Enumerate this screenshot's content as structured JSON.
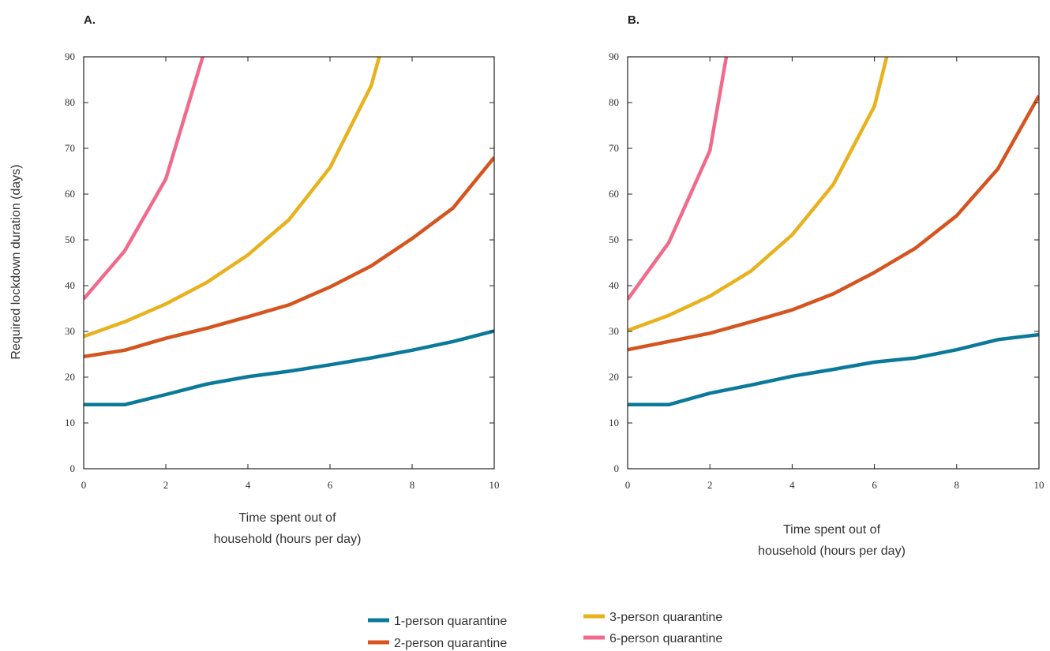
{
  "ylabel": "Required lockdown duration (days)",
  "xlabel_lines": [
    "Time spent out of",
    "household (hours per day)"
  ],
  "colors": {
    "1-person quarantine": "#0b7a9a",
    "2-person quarantine": "#d55420",
    "3-person quarantine": "#e8b11e",
    "6-person quarantine": "#f06b8b"
  },
  "chart_data": [
    {
      "type": "line",
      "panel": "A.",
      "x_ticks": [
        0,
        2,
        4,
        6,
        8,
        10
      ],
      "y_ticks": [
        0,
        10,
        20,
        30,
        40,
        50,
        60,
        70,
        80,
        90
      ],
      "xlim": [
        0,
        10
      ],
      "ylim": [
        0,
        90
      ],
      "grid": false,
      "series": [
        {
          "name": "1-person quarantine",
          "x": [
            0,
            1,
            2,
            3,
            4,
            5,
            6,
            7,
            8,
            9,
            10
          ],
          "y": [
            14,
            14,
            16.2,
            18.5,
            20.1,
            21.3,
            22.7,
            24.2,
            25.9,
            27.8,
            30.1
          ]
        },
        {
          "name": "2-person quarantine",
          "x": [
            0,
            1,
            2,
            3,
            4,
            5,
            6,
            7,
            8,
            9,
            10
          ],
          "y": [
            24.5,
            25.9,
            28.5,
            30.7,
            33.2,
            35.8,
            39.7,
            44.3,
            50.3,
            57,
            68
          ]
        },
        {
          "name": "3-person quarantine",
          "x": [
            0,
            1,
            2,
            3,
            4,
            5,
            6,
            7,
            7.2
          ],
          "y": [
            28.9,
            32.1,
            36,
            40.7,
            46.7,
            54.4,
            65.8,
            83.6,
            90
          ]
        },
        {
          "name": "6-person quarantine",
          "x": [
            0,
            1,
            2,
            2.9
          ],
          "y": [
            37.1,
            47.6,
            63.3,
            90
          ]
        }
      ]
    },
    {
      "type": "line",
      "panel": "B.",
      "x_ticks": [
        0,
        2,
        4,
        6,
        8,
        10
      ],
      "y_ticks": [
        0,
        10,
        20,
        30,
        40,
        50,
        60,
        70,
        80,
        90
      ],
      "xlim": [
        0,
        10
      ],
      "ylim": [
        0,
        90
      ],
      "grid": false,
      "series": [
        {
          "name": "1-person quarantine",
          "x": [
            0,
            1,
            2,
            3,
            4,
            5,
            6,
            7,
            8,
            9,
            10
          ],
          "y": [
            14,
            14,
            16.5,
            18.3,
            20.2,
            21.7,
            23.3,
            24.2,
            26,
            28.2,
            29.3
          ]
        },
        {
          "name": "2-person quarantine",
          "x": [
            0,
            1,
            2,
            3,
            4,
            5,
            6,
            7,
            8,
            9,
            10
          ],
          "y": [
            26,
            27.8,
            29.6,
            32.1,
            34.7,
            38.2,
            42.9,
            48.2,
            55.3,
            65.5,
            81.5
          ]
        },
        {
          "name": "3-person quarantine",
          "x": [
            0,
            1,
            2,
            3,
            4,
            5,
            6,
            6.3
          ],
          "y": [
            30.2,
            33.5,
            37.7,
            43.2,
            51.1,
            62.1,
            79.2,
            90
          ]
        },
        {
          "name": "6-person quarantine",
          "x": [
            0,
            1,
            2,
            2.4
          ],
          "y": [
            37,
            49.4,
            69.5,
            90
          ]
        }
      ]
    }
  ],
  "legend": [
    {
      "label": "1-person quarantine"
    },
    {
      "label": "3-person quarantine"
    },
    {
      "label": "2-person quarantine"
    },
    {
      "label": "6-person quarantine"
    }
  ]
}
